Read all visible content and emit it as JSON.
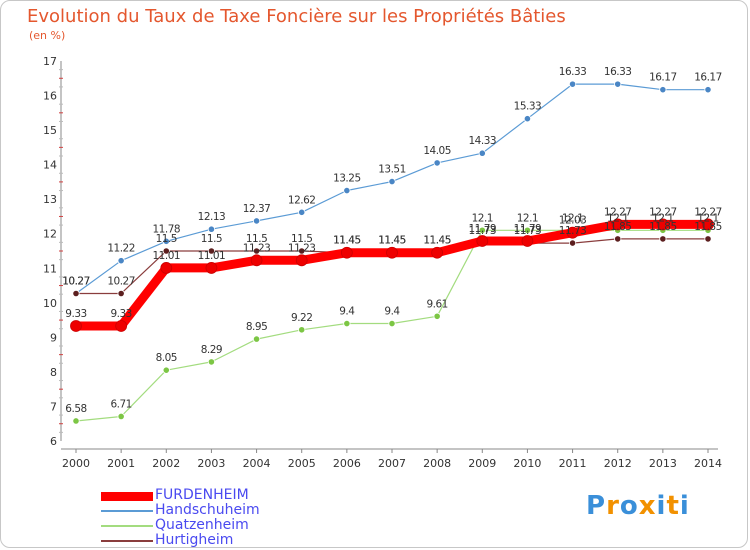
{
  "title": "Evolution du Taux de Taxe Foncière sur les Propriétés Bâties",
  "subtitle": "(en %)",
  "logo": {
    "text": "Proxiti",
    "letters": [
      "P",
      "r",
      "o",
      "x",
      "i",
      "t",
      "i"
    ],
    "colors": [
      "#3a8fd9",
      "#f29100",
      "#3a8fd9",
      "#f29100",
      "#3a8fd9",
      "#f29100",
      "#3a8fd9"
    ]
  },
  "chart_data": {
    "type": "line",
    "title": "Evolution du Taux de Taxe Foncière sur les Propriétés Bâties",
    "ylabel": "(en %)",
    "categories": [
      "2000",
      "2001",
      "2002",
      "2003",
      "2004",
      "2005",
      "2006",
      "2007",
      "2008",
      "2009",
      "2010",
      "2011",
      "2012",
      "2013",
      "2014"
    ],
    "ylim": [
      6,
      17
    ],
    "yticks": [
      6,
      7,
      8,
      9,
      10,
      11,
      12,
      13,
      14,
      15,
      16,
      17
    ],
    "grid": false,
    "legend_position": "bottom-left",
    "series": [
      {
        "name": "Handschuheim",
        "color": "#5b9bd5",
        "point_color": "#4a86c5",
        "width": 1.2,
        "values": [
          10.27,
          11.22,
          11.78,
          12.13,
          12.37,
          12.62,
          13.25,
          13.51,
          14.05,
          14.33,
          15.33,
          16.33,
          16.33,
          16.17,
          16.17
        ],
        "labels": [
          "10.27",
          "11.22",
          "11.78",
          "12.13",
          "12.37",
          "12.62",
          "13.25",
          "13.51",
          "14.05",
          "14.33",
          "15.33",
          "16.33",
          "16.33",
          "16.17",
          "16.17"
        ]
      },
      {
        "name": "Quatzenheim",
        "color": "#a3dc7f",
        "point_color": "#7cc644",
        "width": 1.2,
        "values": [
          6.58,
          6.71,
          8.05,
          8.29,
          8.95,
          9.22,
          9.4,
          9.4,
          9.61,
          12.1,
          12.1,
          12.1,
          12.1,
          12.1,
          12.1
        ],
        "labels": [
          "6.58",
          "6.71",
          "8.05",
          "8.29",
          "8.95",
          "9.22",
          "9.4",
          "9.4",
          "9.61",
          "12.1",
          "12.1",
          "12.1",
          "12.1",
          "12.1",
          "12.1"
        ]
      },
      {
        "name": "Hurtigheim",
        "color": "#8a3d3d",
        "point_color": "#5c1f1f",
        "width": 1.2,
        "values": [
          10.27,
          10.27,
          11.5,
          11.5,
          11.5,
          11.5,
          11.45,
          11.45,
          11.45,
          11.73,
          11.73,
          11.73,
          11.85,
          11.85,
          11.85
        ],
        "labels": [
          "10.27",
          "10.27",
          "11.5",
          "11.5",
          "11.5",
          "11.5",
          "11.45",
          "11.45",
          "11.45",
          "11.73",
          "11.73",
          "11.73",
          "11.85",
          "11.85",
          "11.85"
        ]
      },
      {
        "name": "FURDENHEIM",
        "color": "#ff0000",
        "point_color": "#ee0000",
        "width": 9,
        "values": [
          9.33,
          9.33,
          11.01,
          11.01,
          11.23,
          11.23,
          11.45,
          11.45,
          11.45,
          11.79,
          11.79,
          12.03,
          12.27,
          12.27,
          12.27
        ],
        "labels": [
          "9.33",
          "9.33",
          "11.01",
          "11.01",
          "11.23",
          "11.23",
          "11.45",
          "11.45",
          "11.45",
          "11.79",
          "11.79",
          "12.03",
          "12.27",
          "12.27",
          "12.27"
        ]
      }
    ],
    "legend_order": [
      "FURDENHEIM",
      "Handschuheim",
      "Quatzenheim",
      "Hurtigheim"
    ]
  }
}
